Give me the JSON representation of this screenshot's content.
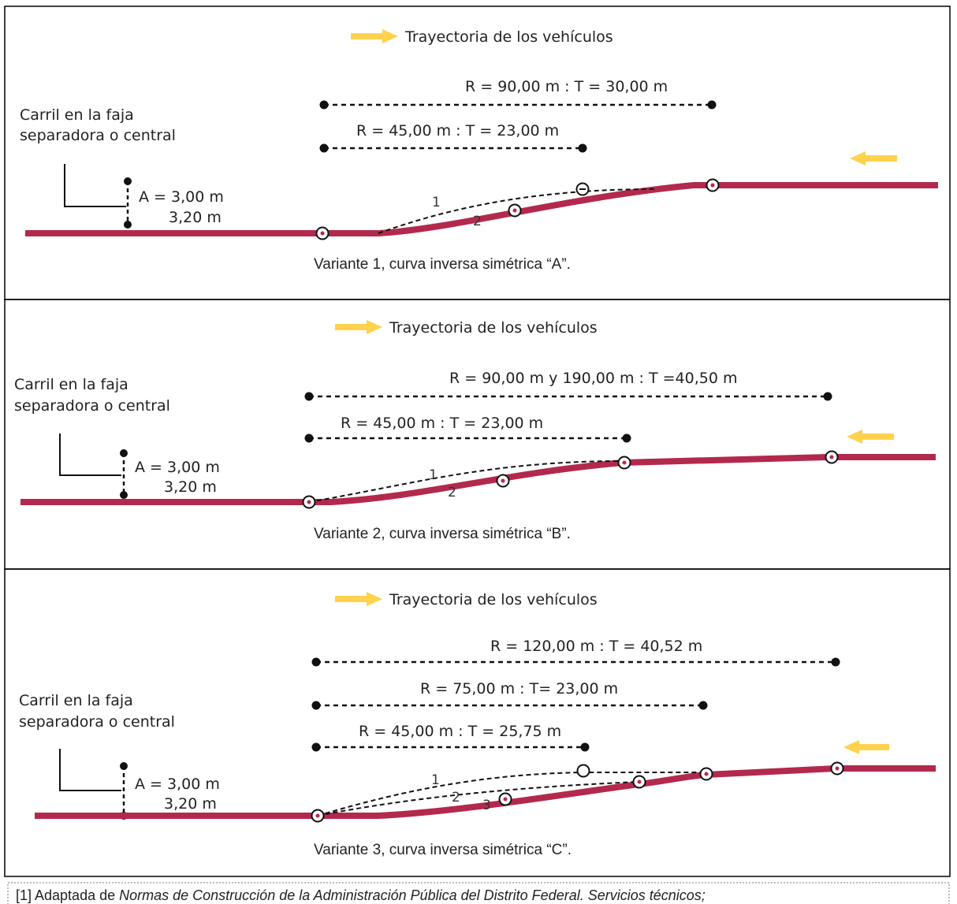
{
  "colors": {
    "road": "#b3294e",
    "arrow": "#ffd24d",
    "frame": "#000000",
    "dots": "#111111"
  },
  "panels": [
    {
      "legend": "Trayectoria de los vehículos",
      "lane_label": [
        "Carril en la faja",
        "separadora o central"
      ],
      "offset_a": "A = 3,00 m",
      "offset_b": "3,20 m",
      "dims": [
        "R = 90,00 m  : T = 30,00 m",
        "R = 45,00 m : T = 23,00 m"
      ],
      "curve_numbers": [
        "1",
        "2"
      ],
      "caption": "Variante 1, curva inversa simétrica “A”."
    },
    {
      "legend": "Trayectoria de los vehículos",
      "lane_label": [
        "Carril en la faja",
        "separadora o central"
      ],
      "offset_a": "A = 3,00 m",
      "offset_b": "3,20 m",
      "dims": [
        "R = 90,00 m y 190,00 m : T =40,50 m",
        "R = 45,00 m : T = 23,00 m"
      ],
      "curve_numbers": [
        "1",
        "2"
      ],
      "caption": "Variante 2, curva inversa simétrica “B”."
    },
    {
      "legend": "Trayectoria de los vehículos",
      "lane_label": [
        "Carril en la faja",
        "separadora o central"
      ],
      "offset_a": "A = 3,00 m",
      "offset_b": "3,20 m",
      "dims": [
        "R = 120,00 m : T = 40,52 m",
        "R = 75,00 m : T= 23,00 m",
        "R = 45,00 m : T = 25,75 m"
      ],
      "curve_numbers": [
        "1",
        "2",
        "3"
      ],
      "caption": "Variante 3, curva inversa simétrica “C”."
    }
  ],
  "footnote": {
    "prefix": "[1] Adaptada de ",
    "title": "Normas de Construcción de la Administración Pública del Distrito Federal. Servicios técnicos;"
  }
}
